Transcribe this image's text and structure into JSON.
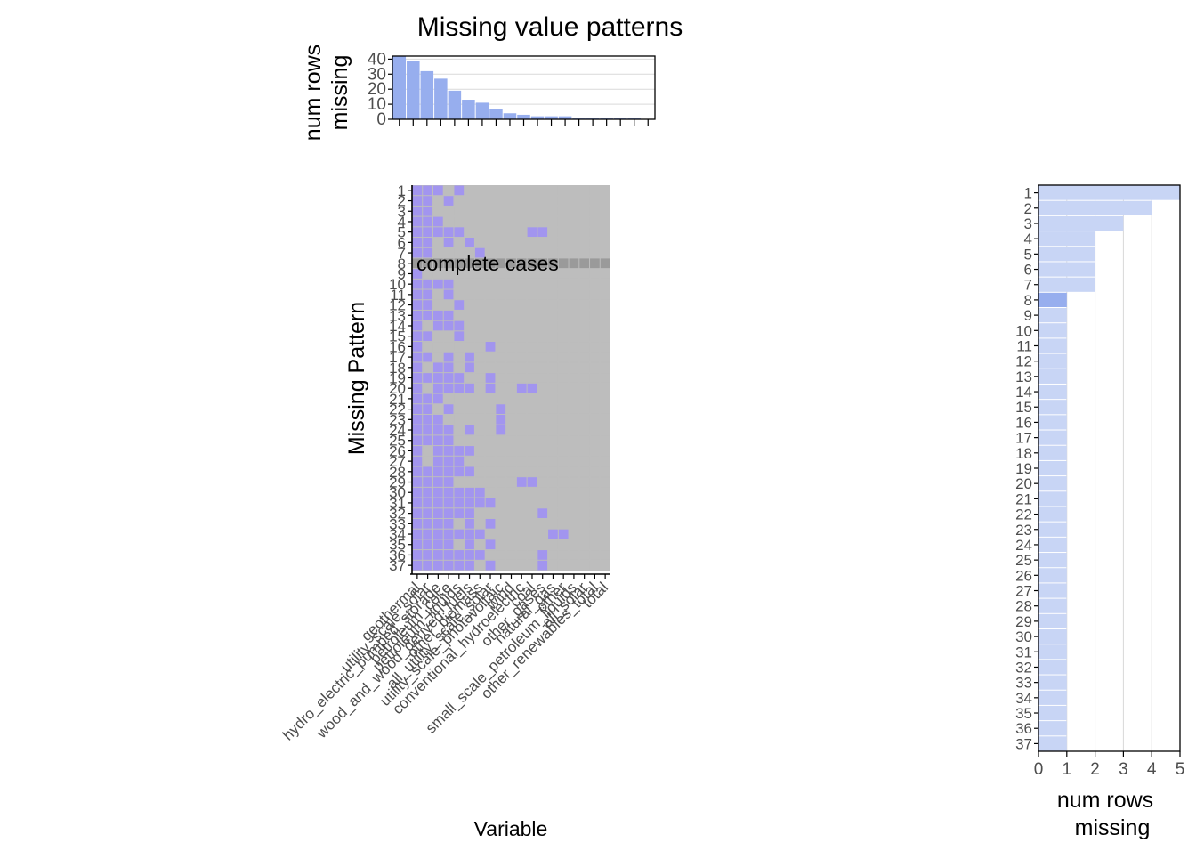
{
  "title": "Missing value patterns",
  "colors": {
    "missing": "#a295ef",
    "present": "#bdbdbd",
    "complete_row": "#9a9a9a",
    "top_bars": "#97aeee",
    "right_bars": "#c8d5f5",
    "right_bar_complete": "#97aeee",
    "grid": "#d9d9d9",
    "axis": "#000000",
    "tick_text": "#4d4d4d"
  },
  "chart_data": [
    {
      "type": "bar",
      "panel": "top",
      "ylabel": "num rows\nmissing",
      "ylim": [
        0,
        42
      ],
      "yticks": [
        "0",
        "10",
        "20",
        "30",
        "40"
      ],
      "values": [
        42,
        39,
        32,
        27,
        19,
        13,
        11,
        7,
        4,
        3,
        2,
        2,
        2,
        1,
        1,
        1,
        1,
        1,
        0
      ]
    },
    {
      "type": "heatmap",
      "panel": "main",
      "xlabel": "Variable",
      "ylabel": "Missing Pattern",
      "annotation": "complete cases",
      "complete_row": 8,
      "variables": [
        "geothermal",
        "utility_scale_solar",
        "hydro_electric_pumped_storage",
        "petroleum_coke",
        "petroleum_liquids",
        "wood_and_wood_derived_fuels",
        "other_biomass",
        "all_utility_scale_solar",
        "utility_scale_photovoltaic",
        "wind",
        "conventional_hydroelectric",
        "coal",
        "other_gases",
        "natural_gas",
        "other",
        "small_scale_petroleum_liquids",
        "all_solar",
        "other_renewables_total",
        "total"
      ],
      "pattern_labels": [
        "1",
        "2",
        "3",
        "4",
        "5",
        "6",
        "7",
        "8",
        "9",
        "10",
        "11",
        "12",
        "13",
        "14",
        "15",
        "16",
        "17",
        "18",
        "19",
        "20",
        "21",
        "22",
        "23",
        "24",
        "25",
        "26",
        "27",
        "28",
        "29",
        "30",
        "31",
        "32",
        "33",
        "34",
        "35",
        "36",
        "37"
      ],
      "patterns": [
        "1110100000000000000",
        "1101000000000000000",
        "1100000000000000000",
        "1110000000000000000",
        "1111100000011000000",
        "1101010000000000000",
        "1100001000000000000",
        "0000000000000000000",
        "1000000000000000000",
        "1111000000000000000",
        "1101000000000000000",
        "1100100000000000000",
        "1111000000000000000",
        "1011100000000000000",
        "1100100000000000000",
        "1000000100000000000",
        "1101010000000000000",
        "1011010000000000000",
        "1111100100000000000",
        "1011110100110000000",
        "1110000000000000000",
        "1101000010000000000",
        "1110000010000000000",
        "1111010010000000000",
        "1111000000000000000",
        "1011110000000000000",
        "1011100000000000000",
        "1111110000000000000",
        "1111000000110000000",
        "1111111000000000000",
        "1111111100000000000",
        "1111110000001000000",
        "1111010100000000000",
        "1111111000000110000",
        "1111010100000000000",
        "1111111000001000000",
        "1111110100001000000"
      ]
    },
    {
      "type": "bar",
      "panel": "right",
      "orientation": "horizontal",
      "xlabel": "num rows\nmissing",
      "xlim": [
        0,
        5
      ],
      "xticks": [
        "0",
        "1",
        "2",
        "3",
        "4",
        "5"
      ],
      "categories": [
        "1",
        "2",
        "3",
        "4",
        "5",
        "6",
        "7",
        "8",
        "9",
        "10",
        "11",
        "12",
        "13",
        "14",
        "15",
        "16",
        "17",
        "18",
        "19",
        "20",
        "21",
        "22",
        "23",
        "24",
        "25",
        "26",
        "27",
        "28",
        "29",
        "30",
        "31",
        "32",
        "33",
        "34",
        "35",
        "36",
        "37"
      ],
      "values": [
        5,
        4,
        3,
        2,
        2,
        2,
        2,
        1,
        1,
        1,
        1,
        1,
        1,
        1,
        1,
        1,
        1,
        1,
        1,
        1,
        1,
        1,
        1,
        1,
        1,
        1,
        1,
        1,
        1,
        1,
        1,
        1,
        1,
        1,
        1,
        1,
        1
      ]
    }
  ]
}
